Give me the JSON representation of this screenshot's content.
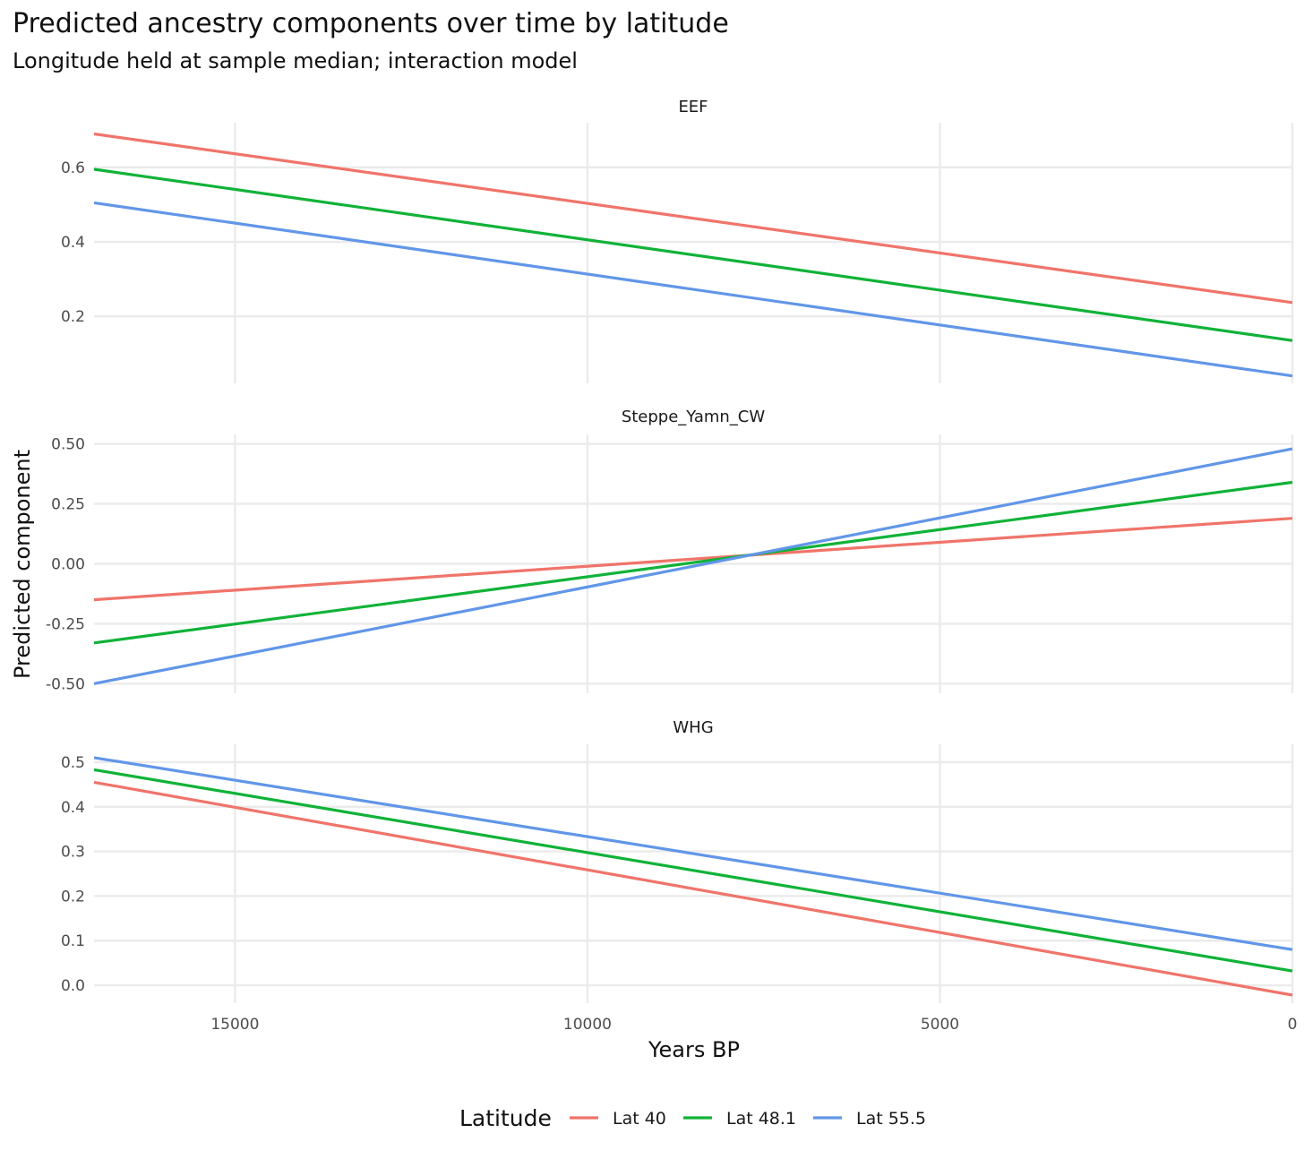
{
  "colors": {
    "lat40": "#F0746A",
    "lat481": "#10B238",
    "lat555": "#6196E8"
  },
  "chart_data": {
    "type": "line",
    "title": "Predicted ancestry components over time by latitude",
    "subtitle": "Longitude held at sample median; interaction model",
    "xlabel": "Years BP",
    "ylabel": "Predicted component",
    "xlim": [
      17000,
      0
    ],
    "x_reversed": true,
    "x_ticks": [
      15000,
      10000,
      5000,
      0
    ],
    "x_tick_labels": [
      "15000",
      "10000",
      "5000",
      "0"
    ],
    "legend": {
      "title": "Latitude",
      "position": "bottom",
      "entries": [
        "Lat 40",
        "Lat 48.1",
        "Lat 55.5"
      ]
    },
    "facets": [
      {
        "name": "EEF",
        "ylim": [
          0.02,
          0.72
        ],
        "y_ticks": [
          0.2,
          0.4,
          0.6
        ],
        "y_tick_labels": [
          "0.2",
          "0.4",
          "0.6"
        ],
        "series": [
          {
            "name": "Lat 40",
            "x": [
              17000,
              0
            ],
            "values": [
              0.69,
              0.237
            ]
          },
          {
            "name": "Lat 48.1",
            "x": [
              17000,
              0
            ],
            "values": [
              0.595,
              0.135
            ]
          },
          {
            "name": "Lat 55.5",
            "x": [
              17000,
              0
            ],
            "values": [
              0.505,
              0.04
            ]
          }
        ]
      },
      {
        "name": "Steppe_Yamn_CW",
        "ylim": [
          -0.54,
          0.54
        ],
        "y_ticks": [
          -0.5,
          -0.25,
          0.0,
          0.25,
          0.5
        ],
        "y_tick_labels": [
          "-0.50",
          "-0.25",
          "0.00",
          "0.25",
          "0.50"
        ],
        "series": [
          {
            "name": "Lat 40",
            "x": [
              17000,
              0
            ],
            "values": [
              -0.15,
              0.19
            ]
          },
          {
            "name": "Lat 48.1",
            "x": [
              17000,
              0
            ],
            "values": [
              -0.33,
              0.34
            ]
          },
          {
            "name": "Lat 55.5",
            "x": [
              17000,
              0
            ],
            "values": [
              -0.5,
              0.48
            ]
          }
        ]
      },
      {
        "name": "WHG",
        "ylim": [
          -0.04,
          0.54
        ],
        "y_ticks": [
          0.0,
          0.1,
          0.2,
          0.3,
          0.4,
          0.5
        ],
        "y_tick_labels": [
          "0.0",
          "0.1",
          "0.2",
          "0.3",
          "0.4",
          "0.5"
        ],
        "series": [
          {
            "name": "Lat 40",
            "x": [
              17000,
              0
            ],
            "values": [
              0.455,
              -0.022
            ]
          },
          {
            "name": "Lat 48.1",
            "x": [
              17000,
              0
            ],
            "values": [
              0.483,
              0.032
            ]
          },
          {
            "name": "Lat 55.5",
            "x": [
              17000,
              0
            ],
            "values": [
              0.51,
              0.08
            ]
          }
        ]
      }
    ]
  }
}
